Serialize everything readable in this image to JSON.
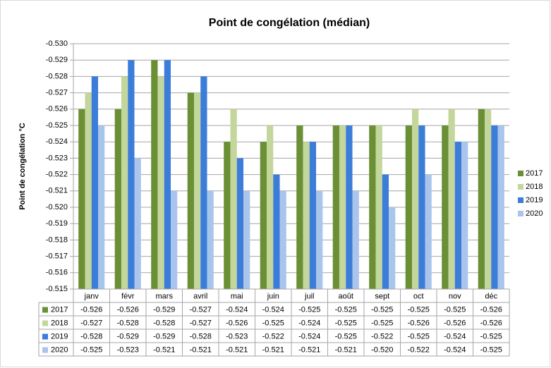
{
  "chart_data": {
    "type": "bar",
    "title": "Point de congélation (médian)",
    "y_label": "Point de congélation °C",
    "categories": [
      "janv",
      "févr",
      "mars",
      "avril",
      "mai",
      "juin",
      "juil",
      "août",
      "sept",
      "oct",
      "nov",
      "déc"
    ],
    "series": [
      {
        "name": "2017",
        "color": "#6a8f35",
        "values": [
          -0.526,
          -0.526,
          -0.529,
          -0.527,
          -0.524,
          -0.524,
          -0.525,
          -0.525,
          -0.525,
          -0.525,
          -0.525,
          -0.526
        ]
      },
      {
        "name": "2018",
        "color": "#c3d69b",
        "values": [
          -0.527,
          -0.528,
          -0.528,
          -0.527,
          -0.526,
          -0.525,
          -0.524,
          -0.525,
          -0.525,
          -0.526,
          -0.526,
          -0.526
        ]
      },
      {
        "name": "2019",
        "color": "#3b7dd8",
        "values": [
          -0.528,
          -0.529,
          -0.529,
          -0.528,
          -0.523,
          -0.522,
          -0.524,
          -0.525,
          -0.522,
          -0.525,
          -0.524,
          -0.525
        ]
      },
      {
        "name": "2020",
        "color": "#a9c5eb",
        "values": [
          -0.525,
          -0.523,
          -0.521,
          -0.521,
          -0.521,
          -0.521,
          -0.521,
          -0.521,
          -0.52,
          -0.522,
          -0.524,
          -0.525
        ],
        "value_labels": [
          "-0.525",
          "-0.523",
          "-0.521",
          "-0.521",
          "-0.521",
          "-0.521",
          "-0.521",
          "-0.521",
          "-0.520",
          "-0.522",
          "-0.524",
          "-0.525"
        ]
      }
    ],
    "ylim": [
      -0.515,
      -0.53
    ],
    "yticks": [
      {
        "value": -0.53,
        "label": "-0.530"
      },
      -0.529,
      -0.528,
      -0.527,
      -0.526,
      -0.525,
      -0.524,
      -0.523,
      -0.522,
      -0.521,
      {
        "value": -0.52,
        "label": "-0.520"
      },
      -0.519,
      -0.518,
      -0.517,
      -0.516,
      -0.515
    ],
    "grid": true,
    "legend": "right",
    "data_table": true
  }
}
